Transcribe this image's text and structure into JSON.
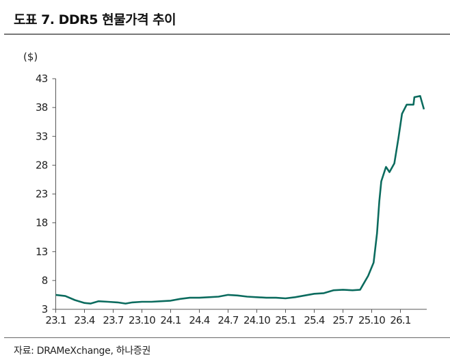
{
  "title": "도표 7. DDR5 현물가격 추이",
  "source": "자료: DRAMeXchange, 하나증권",
  "chart_data": {
    "type": "line",
    "title": "도표 7. DDR5 현물가격 추이",
    "ylabel": "($)",
    "xlabel": "",
    "ylim": [
      3,
      43
    ],
    "yticks": [
      3,
      8,
      13,
      18,
      23,
      28,
      33,
      38,
      43
    ],
    "xtick_labels": [
      "23.1",
      "23.4",
      "23.7",
      "23.10",
      "24.1",
      "24.4",
      "24.7",
      "24.10",
      "25.1",
      "25.4",
      "25.7",
      "25.10",
      "26.1"
    ],
    "xtick_dates": [
      "2023-01",
      "2023-04",
      "2023-07",
      "2023-10",
      "2024-01",
      "2024-04",
      "2024-07",
      "2024-10",
      "2025-01",
      "2025-04",
      "2025-07",
      "2025-10",
      "2026-01"
    ],
    "grid": false,
    "line_color": "#0b6b5e",
    "points": [
      [
        "2023-01-01",
        5.5
      ],
      [
        "2023-02-01",
        5.3
      ],
      [
        "2023-03-01",
        4.6
      ],
      [
        "2023-04-01",
        4.1
      ],
      [
        "2023-04-20",
        4.0
      ],
      [
        "2023-05-15",
        4.4
      ],
      [
        "2023-06-15",
        4.3
      ],
      [
        "2023-07-15",
        4.2
      ],
      [
        "2023-08-10",
        4.0
      ],
      [
        "2023-09-01",
        4.2
      ],
      [
        "2023-10-01",
        4.3
      ],
      [
        "2023-11-01",
        4.3
      ],
      [
        "2023-12-01",
        4.4
      ],
      [
        "2024-01-01",
        4.5
      ],
      [
        "2024-02-01",
        4.8
      ],
      [
        "2024-03-01",
        5.0
      ],
      [
        "2024-04-01",
        5.0
      ],
      [
        "2024-05-01",
        5.1
      ],
      [
        "2024-06-01",
        5.2
      ],
      [
        "2024-07-01",
        5.5
      ],
      [
        "2024-08-01",
        5.4
      ],
      [
        "2024-09-01",
        5.2
      ],
      [
        "2024-10-01",
        5.1
      ],
      [
        "2024-11-01",
        5.0
      ],
      [
        "2024-12-01",
        5.0
      ],
      [
        "2025-01-01",
        4.9
      ],
      [
        "2025-02-01",
        5.1
      ],
      [
        "2025-03-01",
        5.4
      ],
      [
        "2025-04-01",
        5.7
      ],
      [
        "2025-05-01",
        5.8
      ],
      [
        "2025-06-01",
        6.3
      ],
      [
        "2025-07-01",
        6.4
      ],
      [
        "2025-08-01",
        6.3
      ],
      [
        "2025-08-25",
        6.4
      ],
      [
        "2025-09-01",
        7.0
      ],
      [
        "2025-09-20",
        8.8
      ],
      [
        "2025-10-07",
        11.1
      ],
      [
        "2025-10-18",
        16.2
      ],
      [
        "2025-10-25",
        21.7
      ],
      [
        "2025-11-01",
        25.2
      ],
      [
        "2025-11-16",
        27.7
      ],
      [
        "2025-11-27",
        26.8
      ],
      [
        "2025-12-12",
        28.3
      ],
      [
        "2025-12-25",
        32.7
      ],
      [
        "2026-01-06",
        36.9
      ],
      [
        "2026-01-21",
        38.5
      ],
      [
        "2026-02-12",
        38.5
      ],
      [
        "2026-02-15",
        39.8
      ],
      [
        "2026-03-03",
        40.0
      ],
      [
        "2026-03-15",
        37.7
      ]
    ]
  }
}
